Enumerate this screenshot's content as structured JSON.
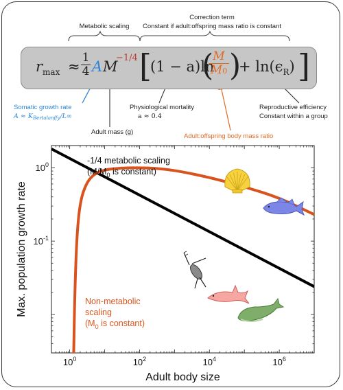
{
  "top_labels": {
    "metabolic_scaling": "Metabolic scaling",
    "correction_title": "Correction term",
    "correction_subtitle": "Constant if adult:offspring mass ratio is constant"
  },
  "equation": {
    "lhs": "r",
    "lhs_sub": "max",
    "approx": "≈",
    "frac_num": "1",
    "frac_den": "4",
    "A": "A",
    "M": "M",
    "exponent": "−1/4",
    "one_minus_a": "(1 − a)ln",
    "ratio_num": "M",
    "ratio_den": "M",
    "ratio_den_sub": "0",
    "plus_ln": "+ ln(ϵ",
    "eps_sub": "R",
    "close_paren": ")"
  },
  "annotations": {
    "somatic_title": "Somatic growth rate",
    "somatic_formula": "A ≈ K",
    "somatic_formula_sub": "Bertalanffy",
    "somatic_formula_tail": "/L∞",
    "adult_mass": "Adult mass (g)",
    "mortality_title": "Physiological mortality",
    "mortality_value": "a ≈ 0.4",
    "ratio_label": "Adult:offspring body mass ratio",
    "repro_title": "Reproductive efficiency",
    "repro_sub": "Constant within a group"
  },
  "colors": {
    "blue": "#2e86d9",
    "red": "#c0392b",
    "orange": "#e06a22",
    "black": "#000000"
  },
  "chart_data": {
    "type": "line",
    "xlabel": "Adult body size",
    "ylabel": "Max. population growth rate",
    "x_scale": "log",
    "y_scale": "log",
    "xlim": [
      0.3,
      10000000
    ],
    "ylim": [
      0.003,
      2
    ],
    "x_ticks": [
      {
        "value": 1,
        "base": "10",
        "exp": "0"
      },
      {
        "value": 100,
        "base": "10",
        "exp": "2"
      },
      {
        "value": 10000,
        "base": "10",
        "exp": "4"
      },
      {
        "value": 1000000,
        "base": "10",
        "exp": "6"
      }
    ],
    "y_ticks": [
      {
        "value": 1,
        "base": "10",
        "exp": "0"
      },
      {
        "value": 0.1,
        "base": "10",
        "exp": "-1"
      }
    ],
    "series": [
      {
        "key": "metabolic",
        "color": "#000000",
        "label_line1": "-1/4 metabolic scaling",
        "label_line2_pre": "(M/M",
        "label_line2_sub": "0",
        "label_line2_post": " is constant)",
        "x": [
          0.3,
          10000000
        ],
        "y": [
          1.8,
          0.024
        ]
      },
      {
        "key": "non_metabolic",
        "color": "#d9531e",
        "label_line1": "Non-metabolic",
        "label_line2": "scaling",
        "label_line3_pre": "(M",
        "label_line3_sub": "0",
        "label_line3_post": " is constant)",
        "x": [
          1.3,
          1.4,
          1.6,
          2,
          3,
          5,
          10,
          30,
          100,
          300,
          1000,
          10000,
          100000,
          1000000,
          10000000
        ],
        "y": [
          0.003,
          0.02,
          0.12,
          0.35,
          0.62,
          0.82,
          0.94,
          0.99,
          1.0,
          0.98,
          0.92,
          0.74,
          0.55,
          0.39,
          0.23
        ]
      }
    ],
    "organisms": [
      "shell-icon",
      "cod-fish-icon",
      "copepod-icon",
      "shark-icon",
      "whale-icon"
    ]
  }
}
